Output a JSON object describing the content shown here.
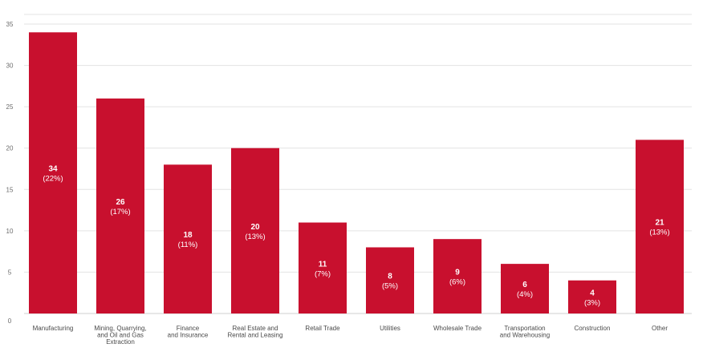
{
  "chart_data": {
    "type": "bar",
    "title": "",
    "xlabel": "",
    "ylabel": "",
    "ylim": [
      0,
      35
    ],
    "yticks": [
      0,
      5,
      10,
      15,
      20,
      25,
      30,
      35
    ],
    "grid": true,
    "bar_color": "#c8102e",
    "categories": [
      [
        "Manufacturing"
      ],
      [
        "Mining, Quarrying,",
        "and Oil and Gas",
        "Extraction"
      ],
      [
        "Finance",
        "and Insurance"
      ],
      [
        "Real Estate and",
        "Rental and Leasing"
      ],
      [
        "Retail Trade"
      ],
      [
        "Utilities"
      ],
      [
        "Wholesale Trade"
      ],
      [
        "Transportation",
        "and Warehousing"
      ],
      [
        "Construction"
      ],
      [
        "Other"
      ]
    ],
    "values": [
      34,
      26,
      18,
      20,
      11,
      8,
      9,
      6,
      4,
      21
    ],
    "value_labels": [
      "34",
      "26",
      "18",
      "20",
      "11",
      "8",
      "9",
      "6",
      "4",
      "21"
    ],
    "percent_labels": [
      "(22%)",
      "(17%)",
      "(11%)",
      "(13%)",
      "(7%)",
      "(5%)",
      "(6%)",
      "(4%)",
      "(3%)",
      "(13%)"
    ]
  }
}
